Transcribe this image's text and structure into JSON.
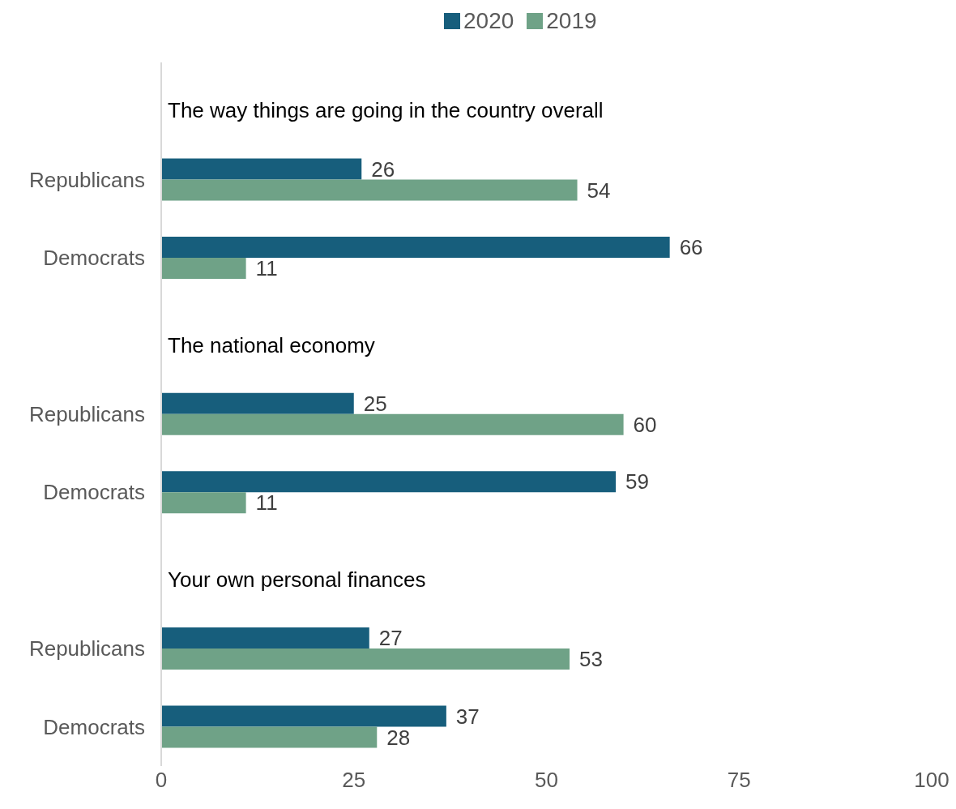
{
  "chart_data": {
    "type": "bar",
    "orientation": "horizontal",
    "categories": [
      null,
      "Republicans",
      "Democrats",
      null,
      "Republicans",
      "Democrats",
      null,
      "Republicans",
      "Democrats"
    ],
    "series": [
      {
        "name": "2020",
        "color": "#175e7c",
        "values": [
          null,
          26,
          66,
          null,
          25,
          59,
          null,
          27,
          37
        ]
      },
      {
        "name": "2019",
        "color": "#6fa287",
        "values": [
          null,
          54,
          11,
          null,
          60,
          11,
          null,
          53,
          28
        ]
      }
    ],
    "annotations": [
      "The way things are going in the country overall",
      "The national economy",
      "Your own personal finances"
    ],
    "xlim": [
      0,
      100
    ],
    "xticks": [
      0,
      25,
      50,
      75,
      100
    ],
    "legend": "top",
    "data_labels": true
  }
}
